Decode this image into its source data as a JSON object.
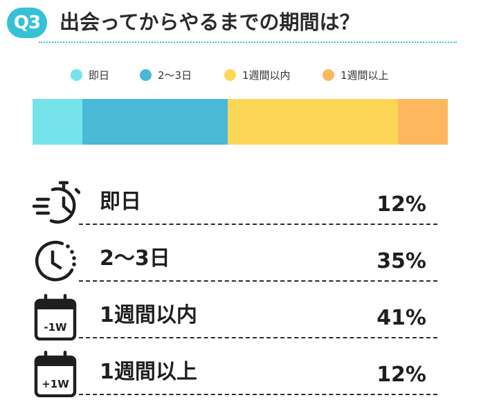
{
  "header": {
    "badge": "Q3",
    "title": "出会ってからやるまでの期間は？"
  },
  "chart_data": {
    "type": "bar",
    "orientation": "stacked-horizontal-100",
    "categories": [
      "即日",
      "2〜3日",
      "1週間以内",
      "1週間以上"
    ],
    "values": [
      12,
      35,
      41,
      12
    ],
    "unit": "%",
    "colors": [
      "#76e3ea",
      "#4ab8d7",
      "#fdd657",
      "#fdb75f"
    ],
    "legend_position": "top",
    "title": ""
  },
  "rows": [
    {
      "label": "即日",
      "value": "12%",
      "icon": "stopwatch-icon"
    },
    {
      "label": "2〜3日",
      "value": "35%",
      "icon": "clock-icon"
    },
    {
      "label": "1週間以内",
      "value": "41%",
      "icon": "calendar-icon",
      "icon_text": "-1W"
    },
    {
      "label": "1週間以上",
      "value": "12%",
      "icon": "calendar-icon",
      "icon_text": "+1W"
    }
  ]
}
